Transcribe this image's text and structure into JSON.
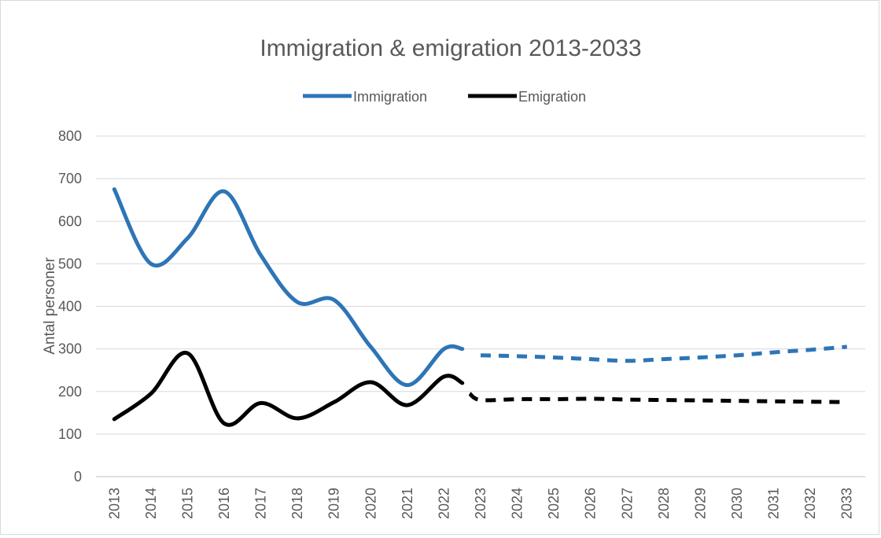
{
  "chart_data": {
    "type": "line",
    "title": "Immigration & emigration 2013-2033",
    "xlabel": "",
    "ylabel": "Antal personer",
    "ylim": [
      0,
      800
    ],
    "yticks": [
      "0",
      "100",
      "200",
      "300",
      "400",
      "500",
      "600",
      "700",
      "800"
    ],
    "grid": true,
    "legend_position": "top",
    "categories": [
      "2013",
      "2014",
      "2015",
      "2016",
      "2017",
      "2018",
      "2019",
      "2020",
      "2021",
      "2022",
      "2023",
      "2024",
      "2025",
      "2026",
      "2027",
      "2028",
      "2029",
      "2030",
      "2031",
      "2032",
      "2033"
    ],
    "series": [
      {
        "name": "Immigration",
        "color": "#2E75B6",
        "actual": {
          "x": [
            "2013",
            "2014",
            "2015",
            "2016",
            "2017",
            "2018",
            "2019",
            "2020",
            "2021",
            "2022",
            "2022.5"
          ],
          "values": [
            675,
            500,
            560,
            670,
            520,
            410,
            415,
            305,
            215,
            300,
            300
          ]
        },
        "forecast": {
          "x": [
            "2023",
            "2024",
            "2025",
            "2026",
            "2027",
            "2028",
            "2029",
            "2030",
            "2031",
            "2032",
            "2033"
          ],
          "values": [
            285,
            283,
            280,
            276,
            272,
            276,
            280,
            285,
            292,
            298,
            305
          ]
        }
      },
      {
        "name": "Emigration",
        "color": "#000000",
        "actual": {
          "x": [
            "2013",
            "2014",
            "2015",
            "2016",
            "2017",
            "2018",
            "2019",
            "2020",
            "2021",
            "2022",
            "2022.5"
          ],
          "values": [
            135,
            195,
            290,
            125,
            173,
            137,
            175,
            222,
            168,
            235,
            220
          ]
        },
        "forecast": {
          "x": [
            "2022.7",
            "2023",
            "2024",
            "2025",
            "2026",
            "2027",
            "2028",
            "2029",
            "2030",
            "2031",
            "2032",
            "2033"
          ],
          "values": [
            195,
            180,
            182,
            182,
            183,
            181,
            180,
            179,
            178,
            177,
            176,
            175
          ]
        }
      }
    ]
  }
}
